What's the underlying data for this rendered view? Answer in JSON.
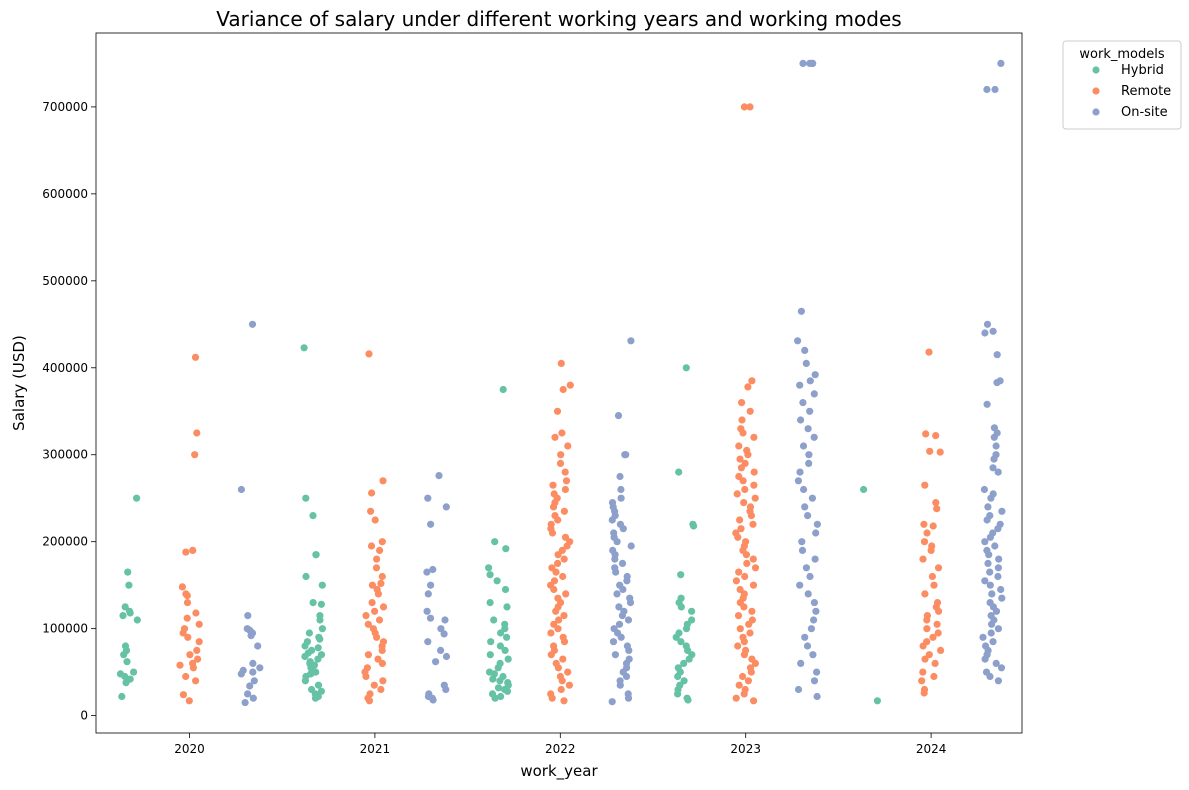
{
  "chart_data": {
    "type": "scatter",
    "title": "Variance of salary under different working years and working modes",
    "xlabel": "work_year",
    "ylabel": "Salary (USD)",
    "categories": [
      "2020",
      "2021",
      "2022",
      "2023",
      "2024"
    ],
    "ylim": [
      -20000,
      785000
    ],
    "yticks": [
      0,
      100000,
      200000,
      300000,
      400000,
      500000,
      600000,
      700000
    ],
    "grid": false,
    "legend": {
      "title": "work_models",
      "placement": "outside-top-right",
      "entries": [
        "Hybrid",
        "Remote",
        "On-site"
      ]
    },
    "series": [
      {
        "name": "Hybrid",
        "color": "#66c2a5",
        "groups": [
          {
            "category": "2020",
            "values": [
              250000,
              165000,
              150000,
              125000,
              120000,
              118000,
              115000,
              110000,
              80000,
              75000,
              70000,
              62000,
              50000,
              48000,
              45000,
              42000,
              38000,
              22000
            ]
          },
          {
            "category": "2021",
            "values": [
              423000,
              250000,
              230000,
              185000,
              185000,
              160000,
              150000,
              130000,
              128000,
              115000,
              110000,
              100000,
              95000,
              90000,
              88000,
              85000,
              80000,
              78000,
              75000,
              72000,
              70000,
              68000,
              65000,
              62000,
              60000,
              58000,
              55000,
              50000,
              48000,
              45000,
              40000,
              35000,
              30000,
              28000,
              25000,
              22000,
              20000
            ]
          },
          {
            "category": "2022",
            "values": [
              375000,
              200000,
              192000,
              170000,
              162000,
              155000,
              145000,
              130000,
              125000,
              110000,
              105000,
              100000,
              95000,
              90000,
              85000,
              80000,
              75000,
              70000,
              65000,
              60000,
              55000,
              50000,
              48000,
              45000,
              42000,
              40000,
              38000,
              35000,
              32000,
              30000,
              28000,
              25000,
              22000,
              20000
            ]
          },
          {
            "category": "2023",
            "values": [
              400000,
              280000,
              220000,
              218000,
              162000,
              135000,
              130000,
              125000,
              120000,
              110000,
              105000,
              100000,
              95000,
              90000,
              85000,
              80000,
              75000,
              70000,
              65000,
              60000,
              55000,
              50000,
              45000,
              40000,
              35000,
              30000,
              25000,
              20000,
              18000
            ]
          },
          {
            "category": "2024",
            "values": [
              260000,
              17000
            ]
          }
        ]
      },
      {
        "name": "Remote",
        "color": "#fc8d62",
        "groups": [
          {
            "category": "2020",
            "values": [
              412000,
              325000,
              300000,
              190000,
              188000,
              148000,
              140000,
              138000,
              130000,
              118000,
              112000,
              105000,
              100000,
              95000,
              90000,
              85000,
              75000,
              70000,
              65000,
              60000,
              58000,
              55000,
              45000,
              40000,
              24000,
              17000
            ]
          },
          {
            "category": "2021",
            "values": [
              416000,
              270000,
              256000,
              235000,
              225000,
              200000,
              195000,
              190000,
              180000,
              170000,
              160000,
              152000,
              150000,
              145000,
              140000,
              130000,
              125000,
              120000,
              115000,
              110000,
              105000,
              100000,
              95000,
              90000,
              85000,
              80000,
              75000,
              70000,
              65000,
              60000,
              55000,
              50000,
              45000,
              40000,
              35000,
              30000,
              25000,
              20000,
              17000
            ]
          },
          {
            "category": "2022",
            "values": [
              405000,
              380000,
              375000,
              350000,
              325000,
              320000,
              310000,
              300000,
              290000,
              280000,
              270000,
              265000,
              260000,
              255000,
              250000,
              245000,
              240000,
              235000,
              230000,
              225000,
              220000,
              215000,
              210000,
              205000,
              200000,
              195000,
              190000,
              185000,
              180000,
              175000,
              170000,
              165000,
              160000,
              155000,
              150000,
              145000,
              140000,
              135000,
              130000,
              125000,
              120000,
              115000,
              110000,
              105000,
              100000,
              95000,
              90000,
              85000,
              80000,
              75000,
              70000,
              65000,
              60000,
              55000,
              50000,
              45000,
              40000,
              35000,
              30000,
              25000,
              20000,
              17000
            ]
          },
          {
            "category": "2023",
            "values": [
              700000,
              700000,
              385000,
              378000,
              360000,
              350000,
              340000,
              330000,
              325000,
              320000,
              310000,
              305000,
              300000,
              295000,
              290000,
              285000,
              280000,
              275000,
              270000,
              265000,
              260000,
              255000,
              250000,
              245000,
              240000,
              235000,
              230000,
              225000,
              220000,
              215000,
              210000,
              205000,
              200000,
              195000,
              190000,
              185000,
              180000,
              175000,
              170000,
              165000,
              160000,
              155000,
              150000,
              145000,
              140000,
              135000,
              130000,
              125000,
              120000,
              115000,
              110000,
              105000,
              100000,
              95000,
              90000,
              85000,
              80000,
              75000,
              70000,
              65000,
              60000,
              55000,
              50000,
              45000,
              40000,
              35000,
              30000,
              25000,
              20000,
              17000
            ]
          },
          {
            "category": "2024",
            "values": [
              418000,
              324000,
              322000,
              304000,
              303000,
              265000,
              245000,
              238000,
              220000,
              218000,
              210000,
              200000,
              195000,
              190000,
              180000,
              170000,
              160000,
              150000,
              140000,
              130000,
              125000,
              120000,
              115000,
              110000,
              105000,
              100000,
              95000,
              90000,
              85000,
              80000,
              75000,
              70000,
              65000,
              60000,
              50000,
              45000,
              40000,
              30000,
              26000
            ]
          }
        ]
      },
      {
        "name": "On-site",
        "color": "#8da0cb",
        "groups": [
          {
            "category": "2020",
            "values": [
              450000,
              260000,
              115000,
              100000,
              98000,
              95000,
              92000,
              80000,
              60000,
              55000,
              52000,
              50000,
              48000,
              40000,
              34000,
              25000,
              20000,
              15000
            ]
          },
          {
            "category": "2021",
            "values": [
              276000,
              250000,
              240000,
              220000,
              168000,
              165000,
              150000,
              140000,
              120000,
              112000,
              110000,
              100000,
              94000,
              85000,
              75000,
              68000,
              62000,
              35000,
              30000,
              25000,
              22000,
              20000,
              18000
            ]
          },
          {
            "category": "2022",
            "values": [
              431000,
              345000,
              300000,
              300000,
              275000,
              260000,
              250000,
              245000,
              240000,
              235000,
              230000,
              225000,
              220000,
              215000,
              210000,
              205000,
              200000,
              195000,
              190000,
              185000,
              180000,
              175000,
              170000,
              165000,
              160000,
              155000,
              150000,
              145000,
              140000,
              135000,
              130000,
              125000,
              120000,
              115000,
              110000,
              105000,
              100000,
              95000,
              90000,
              85000,
              80000,
              75000,
              70000,
              65000,
              60000,
              55000,
              50000,
              45000,
              40000,
              35000,
              25000,
              20000,
              16000
            ]
          },
          {
            "category": "2023",
            "values": [
              750000,
              750000,
              750000,
              750000,
              465000,
              431000,
              420000,
              405000,
              392000,
              385000,
              380000,
              370000,
              360000,
              350000,
              340000,
              330000,
              320000,
              310000,
              300000,
              290000,
              280000,
              270000,
              260000,
              250000,
              240000,
              230000,
              220000,
              210000,
              200000,
              190000,
              180000,
              170000,
              160000,
              150000,
              140000,
              130000,
              120000,
              110000,
              100000,
              90000,
              80000,
              70000,
              60000,
              50000,
              40000,
              30000,
              22000
            ]
          },
          {
            "category": "2024",
            "values": [
              750000,
              720000,
              720000,
              450000,
              442000,
              440000,
              415000,
              385000,
              383000,
              358000,
              331000,
              325000,
              320000,
              310000,
              300000,
              295000,
              285000,
              280000,
              260000,
              255000,
              250000,
              240000,
              235000,
              230000,
              225000,
              220000,
              215000,
              210000,
              205000,
              200000,
              195000,
              190000,
              185000,
              180000,
              175000,
              170000,
              165000,
              160000,
              155000,
              150000,
              145000,
              140000,
              135000,
              130000,
              125000,
              120000,
              115000,
              110000,
              105000,
              100000,
              95000,
              90000,
              85000,
              80000,
              75000,
              70000,
              65000,
              60000,
              55000,
              50000,
              45000,
              40000
            ]
          }
        ]
      }
    ]
  }
}
